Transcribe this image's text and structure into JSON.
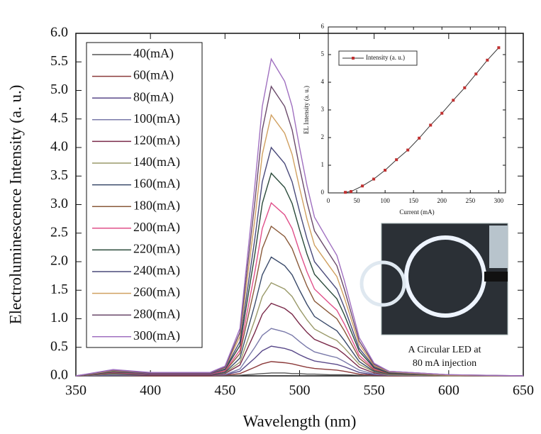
{
  "chart_data": [
    {
      "type": "line",
      "xlabel": "Wavelength (nm)",
      "ylabel": "Electroluminescence Intensity (a. u.)",
      "xlim": [
        350,
        650
      ],
      "ylim": [
        0,
        6
      ],
      "xticks": [
        350,
        400,
        450,
        500,
        550,
        600,
        650
      ],
      "yticks": [
        {
          "value": 0,
          "label": "0.0"
        },
        0.5,
        {
          "value": 1,
          "label": "1.0"
        },
        1.5,
        {
          "value": 2,
          "label": "2.0"
        },
        2.5,
        {
          "value": 3,
          "label": "3.0"
        },
        3.5,
        {
          "value": 4,
          "label": "4.0"
        },
        4.5,
        {
          "value": 5,
          "label": "5.0"
        },
        5.5,
        {
          "value": 6,
          "label": "6.0"
        }
      ],
      "x": [
        350,
        375,
        400,
        440,
        450,
        460,
        470,
        475,
        481,
        490,
        495,
        500,
        505,
        510,
        520,
        525,
        530,
        540,
        550,
        560,
        600,
        650
      ],
      "series": [
        {
          "name": "40(mA)",
          "color": "#555555",
          "values": [
            0,
            0,
            0,
            0,
            0,
            0.01,
            0.03,
            0.04,
            0.05,
            0.05,
            0.04,
            0.04,
            0.03,
            0.03,
            0.02,
            0.02,
            0.02,
            0.01,
            0,
            0,
            0,
            0
          ]
        },
        {
          "name": "60(mA)",
          "color": "#8b3a3a",
          "values": [
            0,
            0.01,
            0,
            0,
            0.01,
            0.04,
            0.15,
            0.21,
            0.25,
            0.23,
            0.21,
            0.18,
            0.15,
            0.13,
            0.11,
            0.1,
            0.08,
            0.03,
            0.01,
            0,
            0,
            0
          ]
        },
        {
          "name": "80(mA)",
          "color": "#5a4a8a",
          "values": [
            0,
            0.01,
            0.01,
            0.01,
            0.02,
            0.08,
            0.31,
            0.44,
            0.52,
            0.48,
            0.44,
            0.37,
            0.31,
            0.26,
            0.22,
            0.2,
            0.16,
            0.06,
            0.02,
            0.01,
            0,
            0
          ]
        },
        {
          "name": "100(mA)",
          "color": "#7a7aaa",
          "values": [
            0,
            0.02,
            0.01,
            0.01,
            0.02,
            0.12,
            0.5,
            0.71,
            0.83,
            0.77,
            0.71,
            0.6,
            0.5,
            0.42,
            0.35,
            0.32,
            0.25,
            0.1,
            0.03,
            0.01,
            0,
            0
          ]
        },
        {
          "name": "120(mA)",
          "color": "#7a2a4a",
          "values": [
            0,
            0.03,
            0.01,
            0.01,
            0.04,
            0.19,
            0.76,
            1.08,
            1.27,
            1.18,
            1.08,
            0.91,
            0.76,
            0.64,
            0.53,
            0.48,
            0.38,
            0.15,
            0.05,
            0.02,
            0,
            0
          ]
        },
        {
          "name": "140(mA)",
          "color": "#9a9a6a",
          "values": [
            0,
            0.03,
            0.02,
            0.02,
            0.05,
            0.24,
            0.98,
            1.39,
            1.63,
            1.52,
            1.39,
            1.17,
            0.98,
            0.82,
            0.68,
            0.62,
            0.49,
            0.2,
            0.07,
            0.02,
            0,
            0
          ]
        },
        {
          "name": "160(mA)",
          "color": "#3a4a6a",
          "values": [
            0,
            0.04,
            0.02,
            0.02,
            0.06,
            0.31,
            1.25,
            1.77,
            2.08,
            1.93,
            1.77,
            1.5,
            1.25,
            1.04,
            0.87,
            0.79,
            0.62,
            0.25,
            0.08,
            0.03,
            0.01,
            0
          ]
        },
        {
          "name": "180(mA)",
          "color": "#8a5a3a",
          "values": [
            0,
            0.05,
            0.03,
            0.03,
            0.08,
            0.39,
            1.57,
            2.23,
            2.62,
            2.44,
            2.23,
            1.89,
            1.57,
            1.31,
            1.1,
            1.0,
            0.79,
            0.31,
            0.1,
            0.04,
            0.01,
            0
          ]
        },
        {
          "name": "200(mA)",
          "color": "#e0508a",
          "values": [
            0,
            0.06,
            0.03,
            0.03,
            0.09,
            0.45,
            1.82,
            2.58,
            3.03,
            2.82,
            2.58,
            2.18,
            1.82,
            1.52,
            1.27,
            1.15,
            0.91,
            0.36,
            0.12,
            0.05,
            0.01,
            0
          ]
        },
        {
          "name": "220(mA)",
          "color": "#2a4a3a",
          "values": [
            0,
            0.07,
            0.04,
            0.04,
            0.11,
            0.53,
            2.13,
            3.02,
            3.55,
            3.3,
            3.02,
            2.56,
            2.13,
            1.78,
            1.49,
            1.35,
            1.07,
            0.43,
            0.14,
            0.05,
            0.01,
            0
          ]
        },
        {
          "name": "240(mA)",
          "color": "#4a4a7a",
          "values": [
            0,
            0.08,
            0.04,
            0.04,
            0.12,
            0.6,
            2.4,
            3.4,
            4.0,
            3.72,
            3.4,
            2.88,
            2.4,
            2.0,
            1.68,
            1.52,
            1.2,
            0.48,
            0.16,
            0.06,
            0.01,
            0
          ]
        },
        {
          "name": "260(mA)",
          "color": "#d0a060",
          "values": [
            0,
            0.09,
            0.05,
            0.05,
            0.14,
            0.69,
            2.74,
            3.88,
            4.57,
            4.25,
            3.88,
            3.29,
            2.74,
            2.29,
            1.92,
            1.74,
            1.37,
            0.55,
            0.18,
            0.07,
            0.01,
            0
          ]
        },
        {
          "name": "280(mA)",
          "color": "#6a4a6a",
          "values": [
            0,
            0.1,
            0.05,
            0.05,
            0.15,
            0.76,
            3.04,
            4.31,
            5.07,
            4.72,
            4.31,
            3.65,
            3.04,
            2.54,
            2.13,
            1.93,
            1.52,
            0.61,
            0.2,
            0.08,
            0.02,
            0
          ]
        },
        {
          "name": "300(mA)",
          "color": "#a070c0",
          "values": [
            0,
            0.11,
            0.06,
            0.06,
            0.17,
            0.83,
            3.33,
            4.72,
            5.55,
            5.16,
            4.72,
            4.0,
            3.33,
            2.78,
            2.33,
            2.11,
            1.67,
            0.67,
            0.22,
            0.08,
            0.02,
            0
          ]
        }
      ],
      "photo_caption": [
        "A Circular LED at",
        "80 mA injection"
      ]
    },
    {
      "type": "line",
      "xlabel": "Current (mA)",
      "ylabel": "EL Intensity (a. u.)",
      "xlim": [
        0,
        312
      ],
      "ylim": [
        0,
        6
      ],
      "xticks": [
        0,
        50,
        100,
        150,
        200,
        250,
        300
      ],
      "yticks": [
        0,
        1,
        2,
        3,
        4,
        5,
        6
      ],
      "x": [
        30,
        40,
        60,
        80,
        100,
        120,
        140,
        160,
        180,
        200,
        220,
        240,
        260,
        280,
        300
      ],
      "series": [
        {
          "name": "Intensity (a. u.)",
          "color": "#c03030",
          "values": [
            0.02,
            0.05,
            0.25,
            0.5,
            0.82,
            1.2,
            1.55,
            1.98,
            2.45,
            2.88,
            3.35,
            3.8,
            4.3,
            4.8,
            5.25
          ]
        }
      ]
    }
  ]
}
